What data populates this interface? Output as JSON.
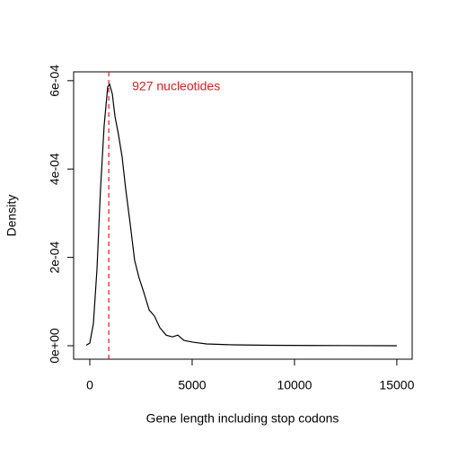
{
  "chart_data": {
    "type": "line",
    "xlabel": "Gene length including stop codons",
    "ylabel": "Density",
    "x": [
      -175,
      0,
      175,
      350,
      525,
      700,
      875,
      965,
      1100,
      1230,
      1400,
      1580,
      1750,
      1975,
      2190,
      2410,
      2630,
      2900,
      3160,
      3420,
      3730,
      4035,
      4300,
      4600,
      5040,
      5700,
      7000,
      8770,
      11000,
      15000
    ],
    "series": [
      {
        "color": "#000000",
        "values": [
          1e-06,
          6e-06,
          5e-05,
          0.000173,
          0.000356,
          0.000498,
          0.000586,
          0.000592,
          0.00057,
          0.000519,
          0.000478,
          0.000427,
          0.000356,
          0.000275,
          0.000193,
          0.000153,
          0.000122,
          8.1e-05,
          6.7e-05,
          4.1e-05,
          2.4e-05,
          2e-05,
          2.4e-05,
          1.2e-05,
          8e-06,
          4e-06,
          2e-06,
          1e-06,
          5e-07,
          0
        ]
      }
    ],
    "xlim": [
      -790,
      15750
    ],
    "ylim": [
      -3.05e-05,
      0.00062
    ],
    "xticks": [
      0,
      5000,
      10000,
      15000
    ],
    "yticks": [
      {
        "value": 0,
        "label": "0e+00"
      },
      {
        "value": 0.0002,
        "label": "2e-04"
      },
      {
        "value": 0.0004,
        "label": "4e-04"
      },
      {
        "value": 0.0006,
        "label": "6e-04"
      }
    ],
    "annotation": {
      "text": "927 nucleotides",
      "x": 927,
      "color": "#e31a1c"
    }
  }
}
